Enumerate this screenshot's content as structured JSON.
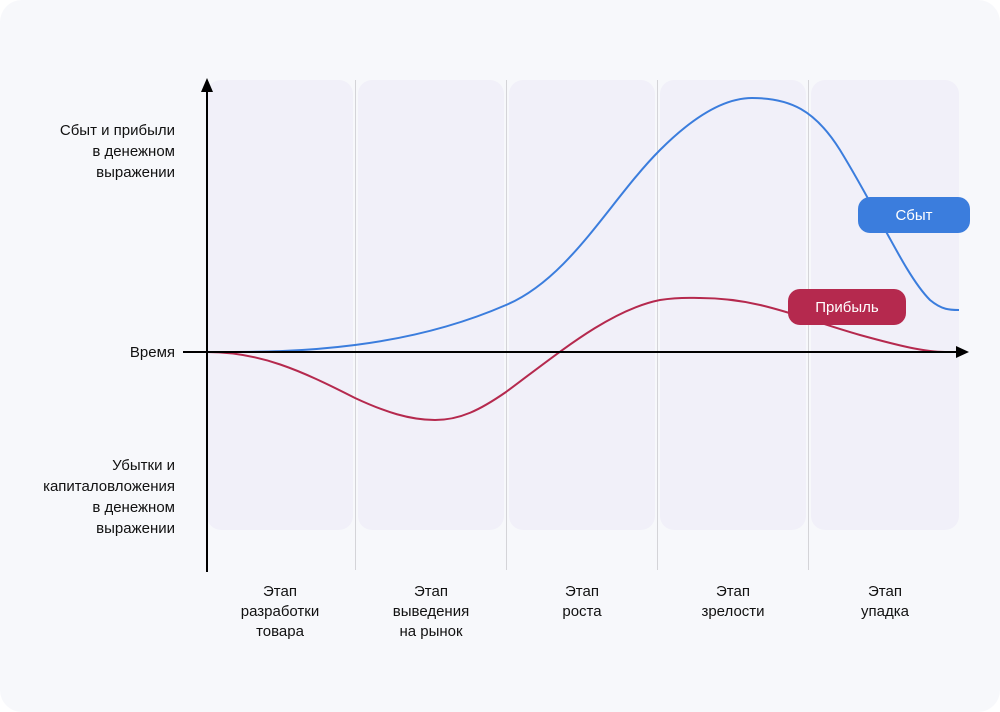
{
  "y_axis": {
    "top_label": "Сбыт и прибыли\nв денежном\nвыражении",
    "middle_label": "Время",
    "bottom_label": "Убытки и\nкапиталовложения\nв денежном\nвыражении"
  },
  "stages": [
    {
      "label": "Этап\nразработки\nтовара"
    },
    {
      "label": "Этап\nвыведения\nна рынок"
    },
    {
      "label": "Этап\nроста"
    },
    {
      "label": "Этап\nзрелости"
    },
    {
      "label": "Этап\nупадка"
    }
  ],
  "series": {
    "sales": {
      "name": "Сбыт",
      "color": "#3b7ddd"
    },
    "profit": {
      "name": "Прибыль",
      "color": "#b5294e"
    }
  },
  "colors": {
    "background": "#f7f8fb",
    "stage_band": "#f1f0f9",
    "axis": "#000000"
  }
}
